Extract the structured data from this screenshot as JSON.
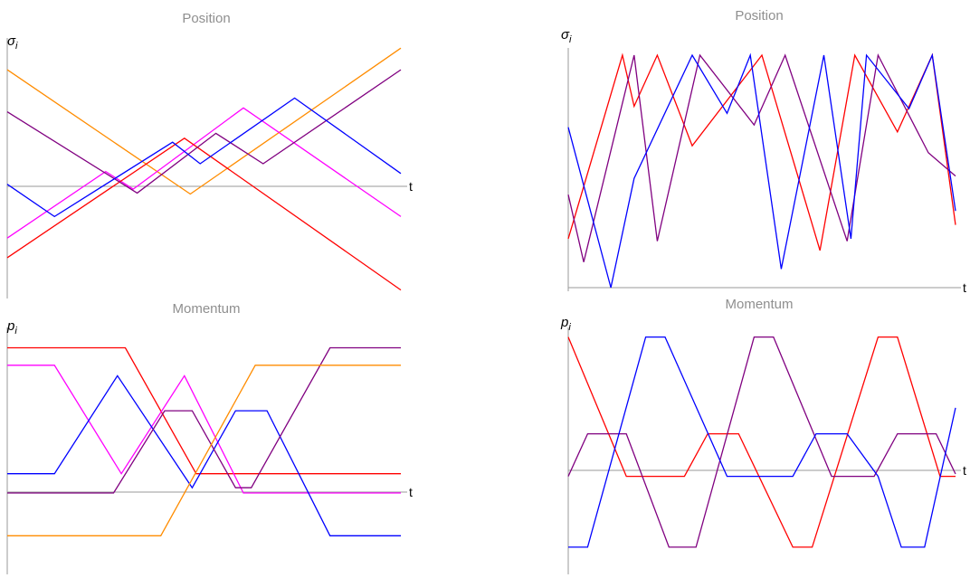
{
  "chart_data": [
    {
      "type": "line",
      "title": "Position",
      "ylabel": "σ",
      "ylabel_sub": "i",
      "xlabel": "t",
      "xlim": [
        0,
        1
      ],
      "ylim": [
        -1.1,
        1.45
      ],
      "grid": false,
      "legend": "none",
      "colors_used": [
        "#ff8c00",
        "#ff00ff",
        "#ff0000",
        "#800080",
        "#0000ff"
      ],
      "series": [
        {
          "color": "#ff8c00",
          "points": [
            [
              0,
              1.2
            ],
            [
              0.465,
              -0.07
            ],
            [
              1,
              1.42
            ]
          ]
        },
        {
          "color": "#ff00ff",
          "points": [
            [
              0,
              -0.52
            ],
            [
              0.25,
              0.16
            ],
            [
              0.32,
              -0.02
            ],
            [
              0.6,
              0.81
            ],
            [
              1,
              -0.3
            ]
          ]
        },
        {
          "color": "#ff0000",
          "points": [
            [
              0,
              -0.72
            ],
            [
              0.45,
              0.5
            ],
            [
              1,
              -1.05
            ]
          ]
        },
        {
          "color": "#800080",
          "points": [
            [
              0,
              0.77
            ],
            [
              0.33,
              -0.06
            ],
            [
              0.53,
              0.55
            ],
            [
              0.65,
              0.24
            ],
            [
              1,
              1.2
            ]
          ]
        },
        {
          "color": "#0000ff",
          "points": [
            [
              0,
              0.03
            ],
            [
              0.12,
              -0.3
            ],
            [
              0.42,
              0.46
            ],
            [
              0.49,
              0.24
            ],
            [
              0.73,
              0.91
            ],
            [
              1,
              0.14
            ]
          ]
        }
      ]
    },
    {
      "type": "line",
      "title": "Position",
      "ylabel": "σ",
      "ylabel_sub": "i",
      "xlabel": "t",
      "xlim": [
        0,
        1
      ],
      "ylim": [
        0,
        1
      ],
      "grid": false,
      "legend": "none",
      "colors_used": [
        "#ff0000",
        "#800080",
        "#0000ff"
      ],
      "series": [
        {
          "color": "#ff0000",
          "points": [
            [
              0,
              0.21
            ],
            [
              0.14,
              1
            ],
            [
              0.17,
              0.78
            ],
            [
              0.23,
              1
            ],
            [
              0.32,
              0.61
            ],
            [
              0.5,
              1
            ],
            [
              0.65,
              0.16
            ],
            [
              0.74,
              1
            ],
            [
              0.85,
              0.67
            ],
            [
              0.94,
              1
            ],
            [
              1,
              0.27
            ]
          ]
        },
        {
          "color": "#800080",
          "points": [
            [
              0,
              0.4
            ],
            [
              0.04,
              0.11
            ],
            [
              0.17,
              1
            ],
            [
              0.23,
              0.2
            ],
            [
              0.34,
              1
            ],
            [
              0.48,
              0.7
            ],
            [
              0.56,
              1
            ],
            [
              0.72,
              0.2
            ],
            [
              0.8,
              1
            ],
            [
              0.93,
              0.58
            ],
            [
              1,
              0.48
            ]
          ]
        },
        {
          "color": "#0000ff",
          "points": [
            [
              0,
              0.69
            ],
            [
              0.11,
              0
            ],
            [
              0.17,
              0.47
            ],
            [
              0.32,
              1
            ],
            [
              0.41,
              0.75
            ],
            [
              0.47,
              1
            ],
            [
              0.55,
              0.08
            ],
            [
              0.66,
              1
            ],
            [
              0.73,
              0.21
            ],
            [
              0.77,
              1
            ],
            [
              0.88,
              0.77
            ],
            [
              0.94,
              1
            ],
            [
              1,
              0.33
            ]
          ]
        }
      ]
    },
    {
      "type": "line",
      "title": "Momentum",
      "ylabel": "p",
      "ylabel_sub": "i",
      "xlabel": "t",
      "xlim": [
        0,
        1
      ],
      "ylim": [
        -1.35,
        1.35
      ],
      "grid": false,
      "legend": "none",
      "colors_used": [
        "#ff0000",
        "#ff00ff",
        "#0000ff",
        "#800080",
        "#ff8c00"
      ],
      "series": [
        {
          "color": "#ff0000",
          "points": [
            [
              0,
              1.2
            ],
            [
              0.3,
              1.2
            ],
            [
              0.48,
              -0.24
            ],
            [
              1,
              -0.24
            ]
          ]
        },
        {
          "color": "#ff00ff",
          "points": [
            [
              0,
              1.0
            ],
            [
              0.12,
              1.0
            ],
            [
              0.29,
              -0.24
            ],
            [
              0.45,
              0.88
            ],
            [
              0.6,
              -0.46
            ],
            [
              1,
              -0.46
            ]
          ]
        },
        {
          "color": "#0000ff",
          "points": [
            [
              0,
              -0.24
            ],
            [
              0.12,
              -0.24
            ],
            [
              0.28,
              0.88
            ],
            [
              0.47,
              -0.4
            ],
            [
              0.58,
              0.48
            ],
            [
              0.66,
              0.48
            ],
            [
              0.82,
              -0.95
            ],
            [
              1,
              -0.95
            ]
          ]
        },
        {
          "color": "#800080",
          "points": [
            [
              0,
              -0.46
            ],
            [
              0.27,
              -0.46
            ],
            [
              0.4,
              0.48
            ],
            [
              0.47,
              0.48
            ],
            [
              0.58,
              -0.4
            ],
            [
              0.62,
              -0.4
            ],
            [
              0.82,
              1.2
            ],
            [
              1,
              1.2
            ]
          ]
        },
        {
          "color": "#ff8c00",
          "points": [
            [
              0,
              -0.95
            ],
            [
              0.39,
              -0.95
            ],
            [
              0.63,
              1.0
            ],
            [
              1,
              1.0
            ]
          ]
        }
      ]
    },
    {
      "type": "line",
      "title": "Momentum",
      "ylabel": "p",
      "ylabel_sub": "i",
      "xlabel": "t",
      "xlim": [
        0,
        1
      ],
      "ylim": [
        -1.0,
        1.0
      ],
      "grid": false,
      "legend": "none",
      "colors_used": [
        "#ff0000",
        "#800080",
        "#0000ff"
      ],
      "series": [
        {
          "color": "#ff0000",
          "points": [
            [
              0,
              0.98
            ],
            [
              0.15,
              -0.2
            ],
            [
              0.3,
              -0.2
            ],
            [
              0.36,
              0.16
            ],
            [
              0.44,
              0.16
            ],
            [
              0.58,
              -0.8
            ],
            [
              0.63,
              -0.8
            ],
            [
              0.8,
              0.98
            ],
            [
              0.85,
              0.98
            ],
            [
              0.96,
              -0.2
            ],
            [
              1,
              -0.2
            ]
          ]
        },
        {
          "color": "#800080",
          "points": [
            [
              0,
              -0.2
            ],
            [
              0.05,
              0.16
            ],
            [
              0.15,
              0.16
            ],
            [
              0.26,
              -0.8
            ],
            [
              0.33,
              -0.8
            ],
            [
              0.48,
              0.98
            ],
            [
              0.53,
              0.98
            ],
            [
              0.68,
              -0.2
            ],
            [
              0.79,
              -0.2
            ],
            [
              0.85,
              0.16
            ],
            [
              0.95,
              0.16
            ],
            [
              1,
              -0.18
            ]
          ]
        },
        {
          "color": "#0000ff",
          "points": [
            [
              0,
              -0.8
            ],
            [
              0.05,
              -0.8
            ],
            [
              0.2,
              0.98
            ],
            [
              0.25,
              0.98
            ],
            [
              0.41,
              -0.2
            ],
            [
              0.58,
              -0.2
            ],
            [
              0.64,
              0.16
            ],
            [
              0.72,
              0.16
            ],
            [
              0.8,
              -0.2
            ],
            [
              0.86,
              -0.8
            ],
            [
              0.92,
              -0.8
            ],
            [
              1,
              0.38
            ]
          ]
        }
      ]
    }
  ]
}
